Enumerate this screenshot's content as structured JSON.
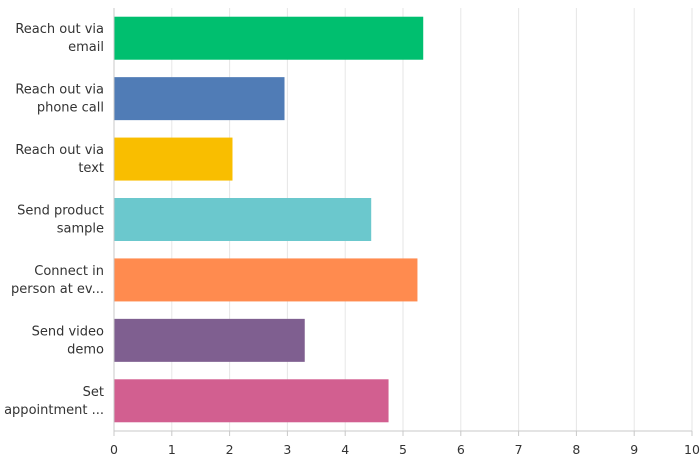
{
  "chart_data": {
    "type": "bar",
    "orientation": "horizontal",
    "categories": [
      [
        "Reach out via",
        "email"
      ],
      [
        "Reach out via",
        "phone call"
      ],
      [
        "Reach out via",
        "text"
      ],
      [
        "Send product",
        "sample"
      ],
      [
        "Connect in",
        "person at ev..."
      ],
      [
        "Send video",
        "demo"
      ],
      [
        "Set",
        "appointment ..."
      ]
    ],
    "values": [
      5.35,
      2.95,
      2.05,
      4.45,
      5.25,
      3.3,
      4.75
    ],
    "colors": [
      "#00bf6f",
      "#507cb6",
      "#f9be00",
      "#6bc8cd",
      "#ff8b4f",
      "#7f5f90",
      "#d25f90"
    ],
    "xlim": [
      0,
      10
    ],
    "xticks": [
      "0",
      "1",
      "2",
      "3",
      "4",
      "5",
      "6",
      "7",
      "8",
      "9",
      "10"
    ],
    "grid": true,
    "legend": "none"
  }
}
